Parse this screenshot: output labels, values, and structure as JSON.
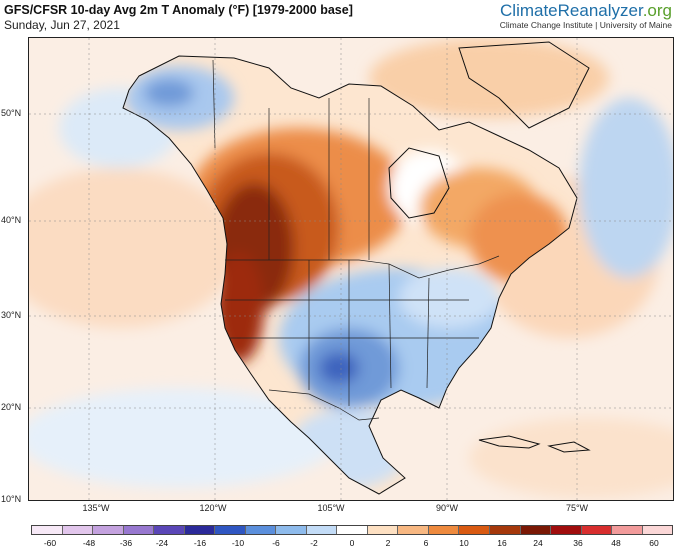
{
  "header": {
    "title": "GFS/CFSR 10-day Avg 2m T Anomaly (°F) [1979-2000 base]",
    "date": "Sunday, Jun 27, 2021",
    "brand_main": "ClimateReanalyzer",
    "brand_suffix": ".org",
    "brand_sub": "Climate Change Institute | University of Maine"
  },
  "map": {
    "region": "North America",
    "lat_labels": [
      "50°N",
      "40°N",
      "30°N",
      "20°N",
      "10°N"
    ],
    "lon_labels": [
      "135°W",
      "120°W",
      "105°W",
      "90°W",
      "75°W"
    ]
  },
  "colorbar": {
    "labels": [
      "-60",
      "-48",
      "-36",
      "-24",
      "-16",
      "-10",
      "-6",
      "-2",
      "0",
      "2",
      "6",
      "10",
      "16",
      "24",
      "36",
      "48",
      "60"
    ],
    "colors": [
      "#f7e9f7",
      "#e2c6ec",
      "#c4a2df",
      "#9878d0",
      "#5a46b7",
      "#2b2a9a",
      "#2f56c2",
      "#5b8fdc",
      "#8ebbec",
      "#c3dcf7",
      "#ffffff",
      "#fde0c2",
      "#f8b882",
      "#ee8a3e",
      "#d95a12",
      "#a5380b",
      "#7a1805",
      "#a00d0d",
      "#d82e2e",
      "#f29b9b",
      "#fbd7d7"
    ]
  }
}
